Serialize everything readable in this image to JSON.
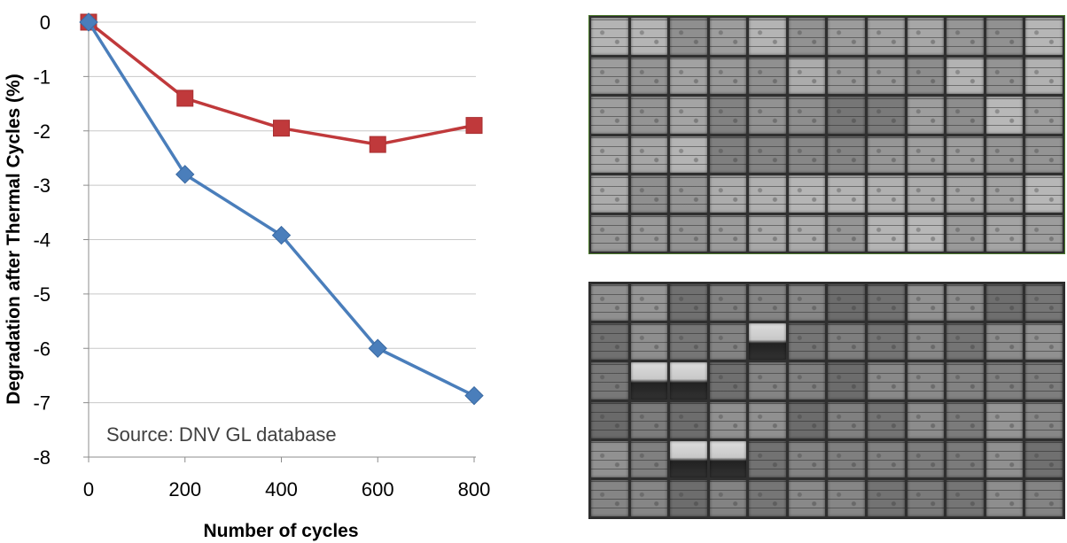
{
  "chart_data": {
    "type": "line",
    "title": "",
    "xlabel": "Number of cycles",
    "ylabel": "Degradation after Thermal Cycles (%)",
    "x": [
      0,
      200,
      400,
      600,
      800
    ],
    "xlim": [
      0,
      800
    ],
    "ylim": [
      -8,
      0
    ],
    "xticks": [
      "0",
      "200",
      "400",
      "600",
      "800"
    ],
    "yticks": [
      "0",
      "-1",
      "-2",
      "-3",
      "-4",
      "-5",
      "-6",
      "-7",
      "-8"
    ],
    "grid": "horizontal",
    "annotation": "Source: DNV GL database",
    "series": [
      {
        "values": [
          0,
          -1.4,
          -1.95,
          -2.25,
          -1.9
        ],
        "color": "#c0393b",
        "marker": "square"
      },
      {
        "values": [
          0,
          -2.8,
          -3.92,
          -6.0,
          -6.87
        ],
        "color": "#4a7ebb",
        "marker": "diamond"
      }
    ]
  },
  "images": {
    "top": {
      "description_icon": "electroluminescence-image",
      "rows": 6,
      "cols": 12,
      "variant": "mild"
    },
    "bottom": {
      "description_icon": "electroluminescence-image",
      "rows": 6,
      "cols": 12,
      "variant": "cracked"
    }
  }
}
